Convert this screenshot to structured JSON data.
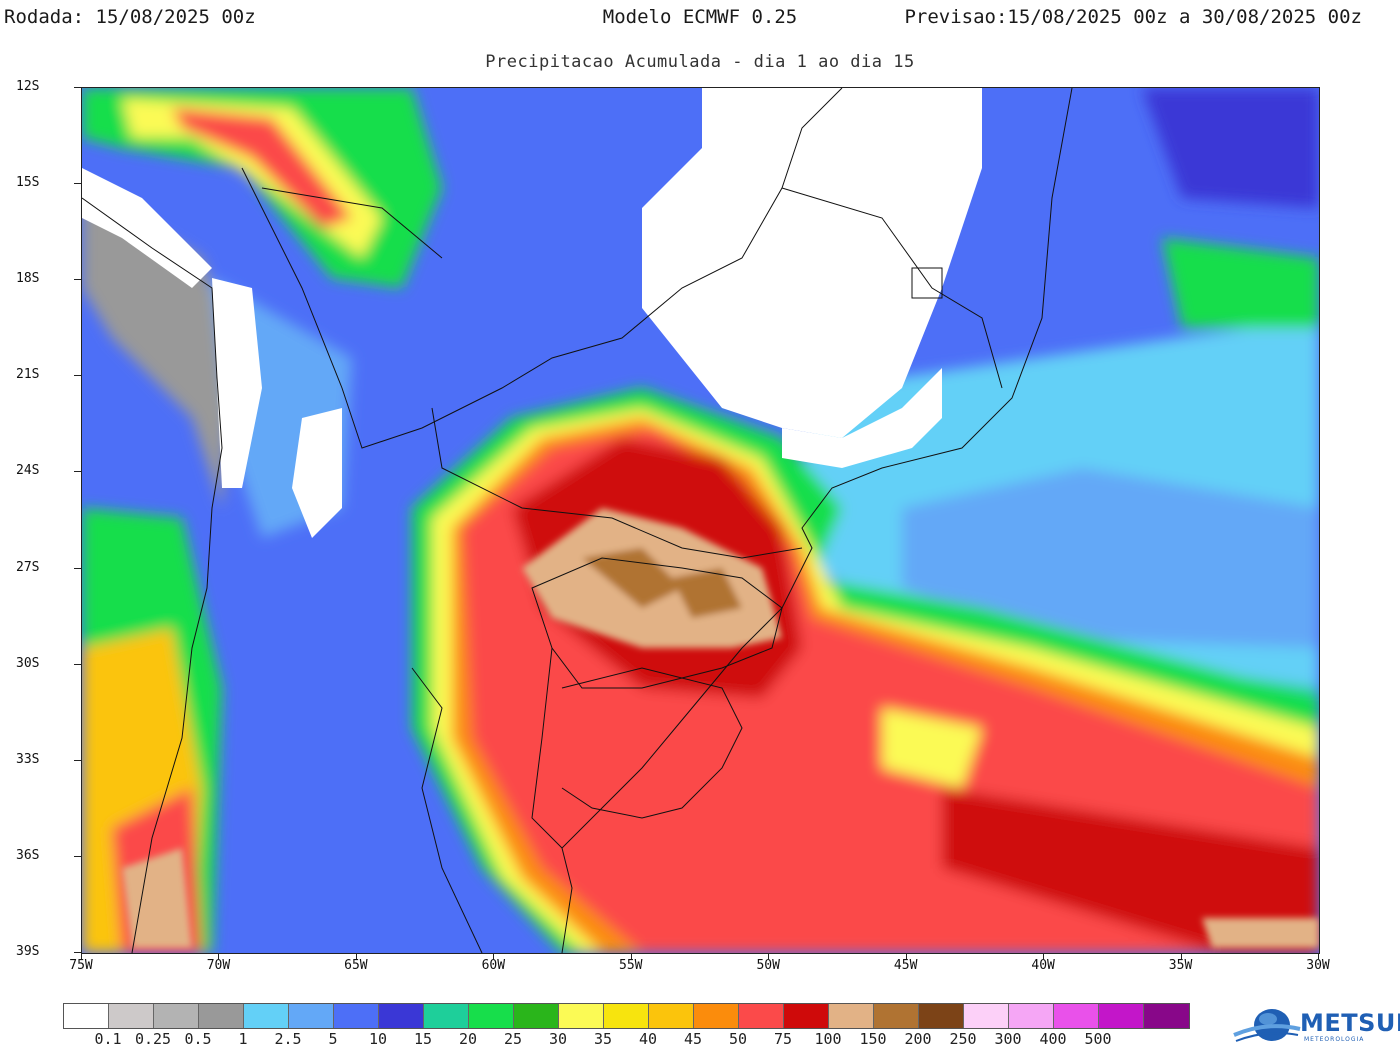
{
  "header": {
    "run_label": "Rodada:",
    "run_value": "15/08/2025 00z",
    "model": "Modelo ECMWF 0.25",
    "forecast_label": "Previsao:",
    "forecast_value": "15/08/2025 00z a 30/08/2025 00z"
  },
  "subtitle": "Precipitacao Acumulada - dia 1 ao dia 15",
  "axes": {
    "lat_labels": [
      "12S",
      "15S",
      "18S",
      "21S",
      "24S",
      "27S",
      "30S",
      "33S",
      "36S",
      "39S"
    ],
    "lon_labels": [
      "75W",
      "70W",
      "65W",
      "60W",
      "55W",
      "50W",
      "45W",
      "40W",
      "35W",
      "30W"
    ]
  },
  "legend": {
    "colors": [
      "#ffffff",
      "#cdc9c9",
      "#b3b3b3",
      "#999999",
      "#63d0f7",
      "#63a8f7",
      "#4d6ff7",
      "#3a37d6",
      "#1ecf9a",
      "#17de4b",
      "#2ab51b",
      "#fbfa55",
      "#f7e40e",
      "#fbc40c",
      "#fb8c0c",
      "#fb4a4a",
      "#cf0a0a",
      "#e2b286",
      "#b07332",
      "#7c4317",
      "#fcd0f8",
      "#f5a6f5",
      "#e951ea",
      "#c316c9",
      "#880789"
    ],
    "labels": [
      "0.1",
      "0.25",
      "0.5",
      "1",
      "2.5",
      "5",
      "10",
      "15",
      "20",
      "25",
      "30",
      "35",
      "40",
      "45",
      "50",
      "75",
      "100",
      "150",
      "200",
      "250",
      "300",
      "400",
      "500"
    ]
  },
  "logo": {
    "name": "METSUL",
    "subtitle": "METEOROLOGIA",
    "colors": [
      "#1f5fb4",
      "#5fa0e0"
    ]
  },
  "map": {
    "projection": "lat/lon",
    "extent": {
      "lon_min": -75,
      "lon_max": -30,
      "lat_min": -39,
      "lat_max": -12
    }
  }
}
